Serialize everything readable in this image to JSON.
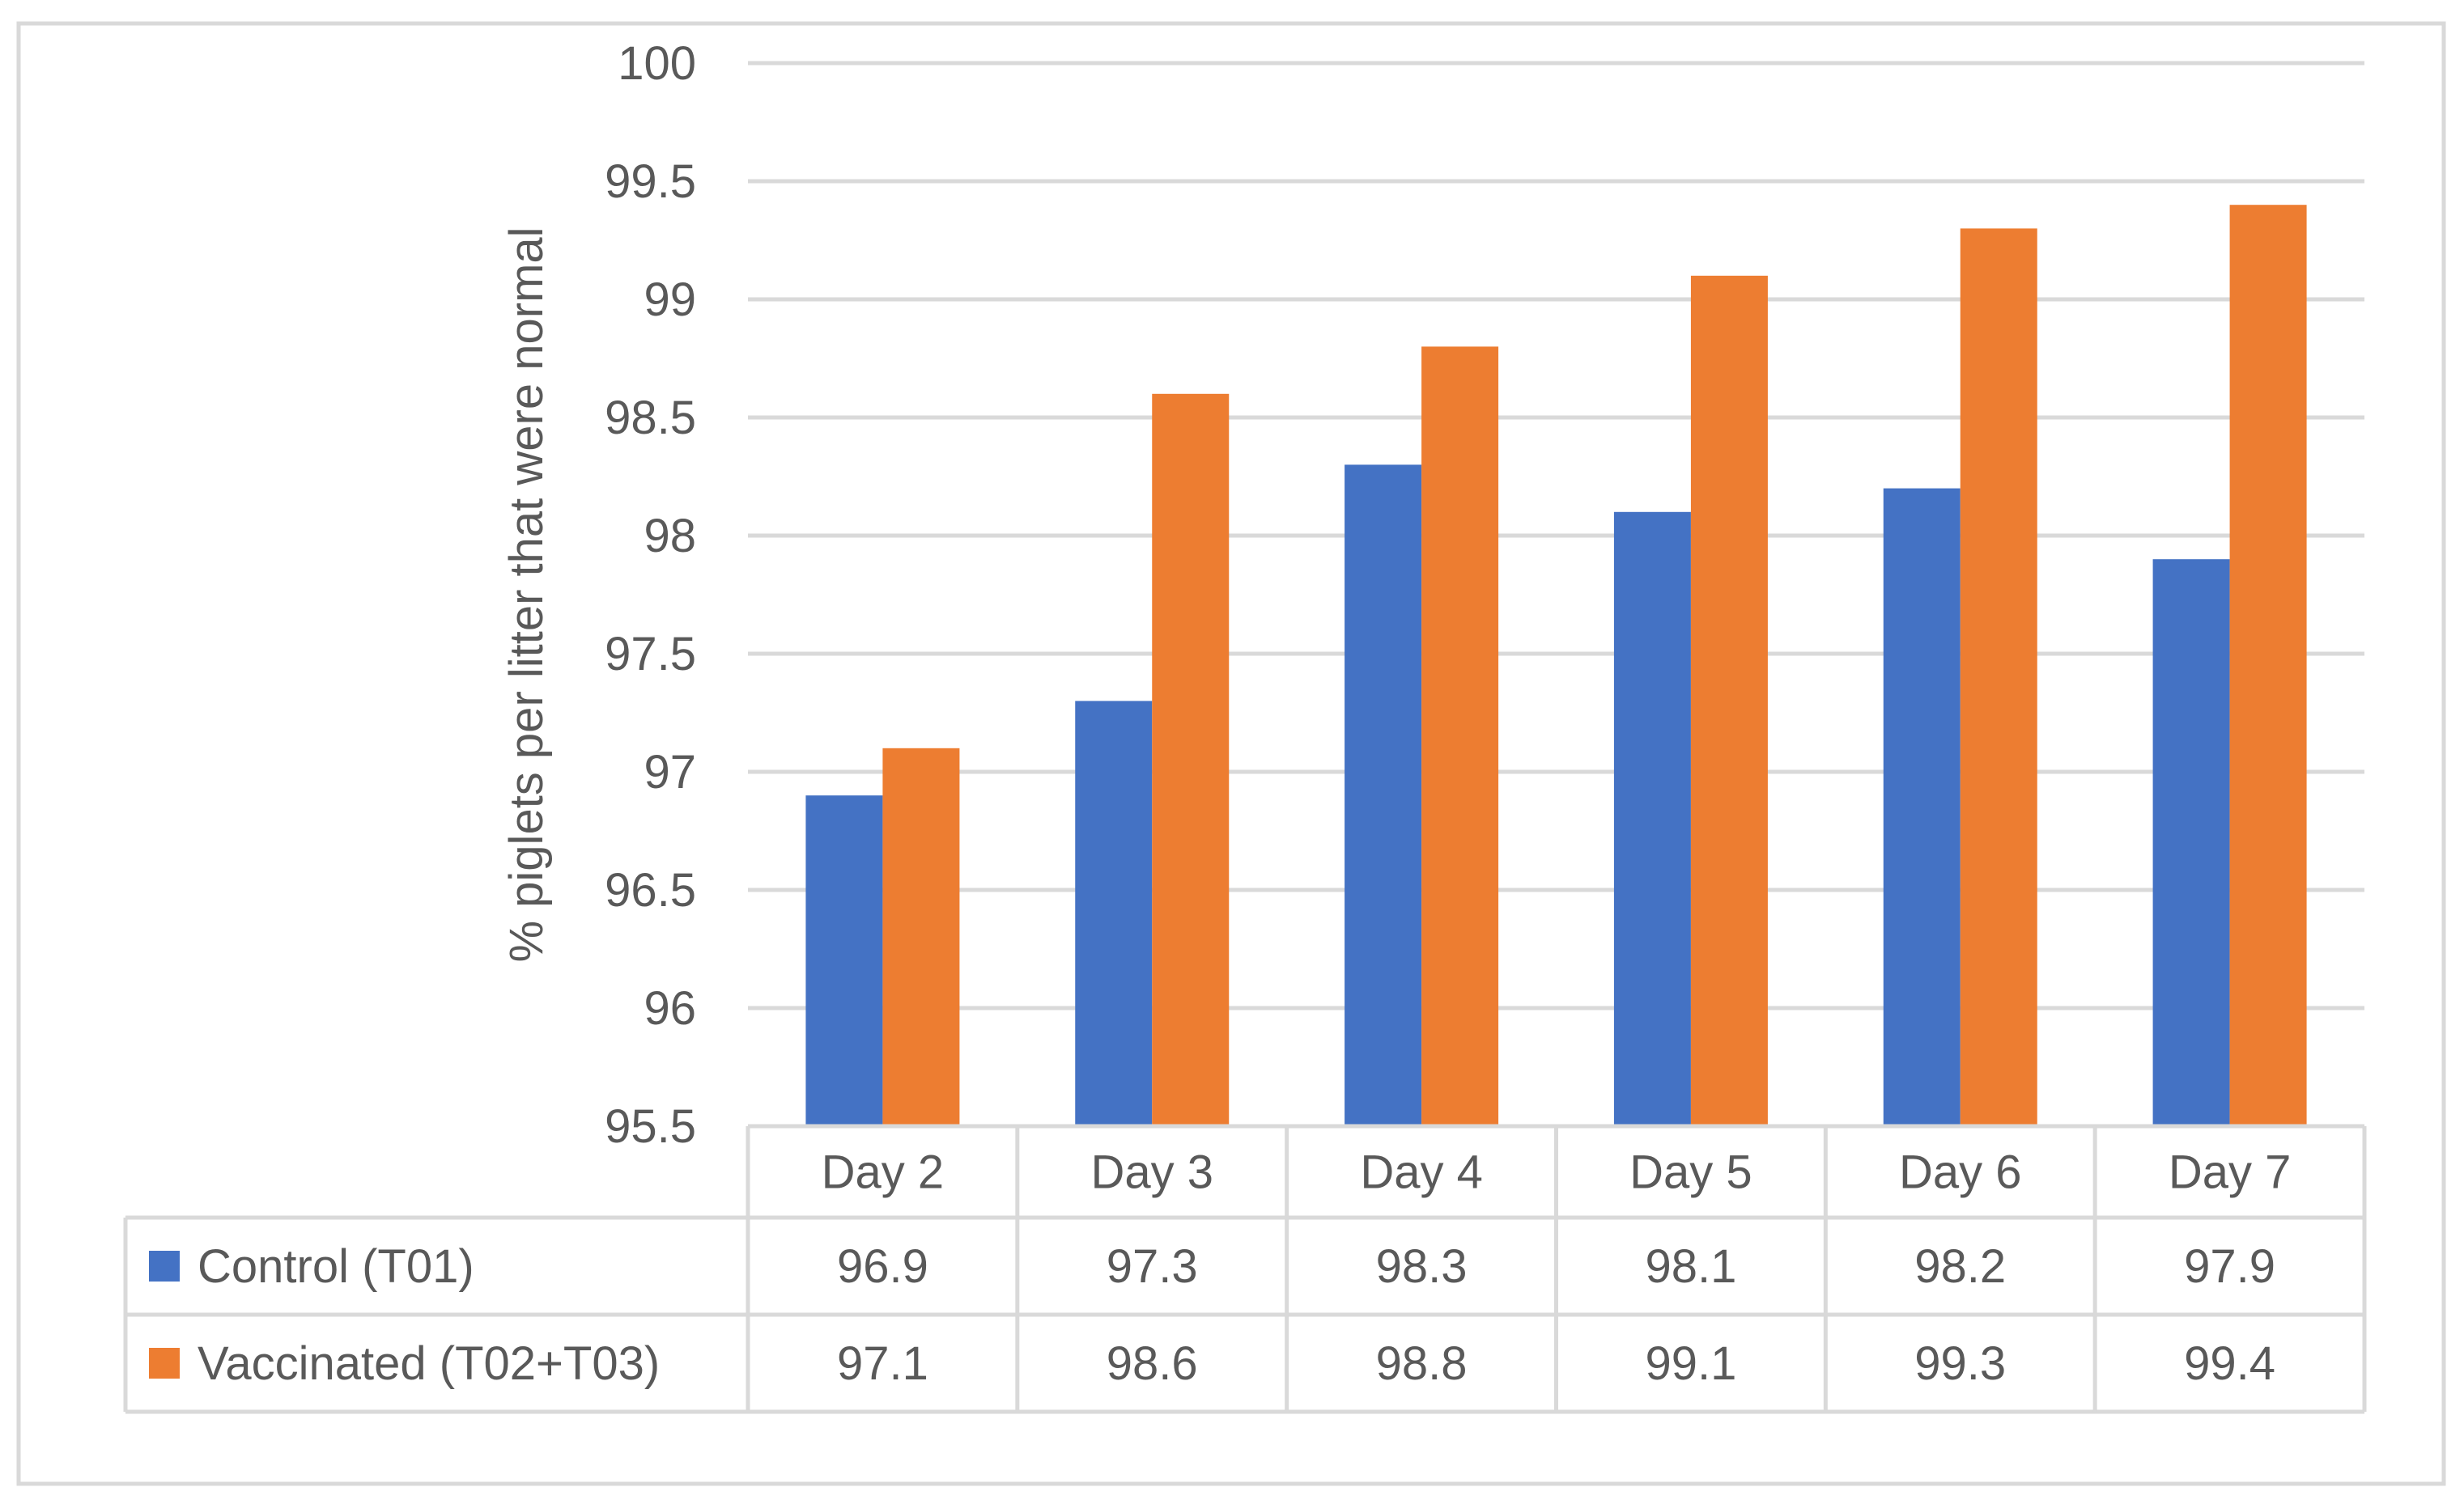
{
  "chart_data": {
    "type": "bar",
    "title": "",
    "xlabel": "",
    "ylabel": "% piglets per litter that were normal",
    "ylim": [
      95.5,
      100
    ],
    "yticks": [
      "95.5",
      "96",
      "96.5",
      "97",
      "97.5",
      "98",
      "98.5",
      "99",
      "99.5",
      "100"
    ],
    "grid": true,
    "legend": "data-table",
    "categories": [
      "Day 2",
      "Day 3",
      "Day 4",
      "Day 5",
      "Day 6",
      "Day 7"
    ],
    "series": [
      {
        "name": "Control (T01)",
        "color": "#4472C4",
        "values": [
          96.9,
          97.3,
          98.3,
          98.1,
          98.2,
          97.9
        ],
        "labels": [
          "96.9",
          "97.3",
          "98.3",
          "98.1",
          "98.2",
          "97.9"
        ]
      },
      {
        "name": "Vaccinated (T02+T03)",
        "color": "#ED7D31",
        "values": [
          97.1,
          98.6,
          98.8,
          99.1,
          99.3,
          99.4
        ],
        "labels": [
          "97.1",
          "98.6",
          "98.8",
          "99.1",
          "99.3",
          "99.4"
        ]
      }
    ]
  }
}
